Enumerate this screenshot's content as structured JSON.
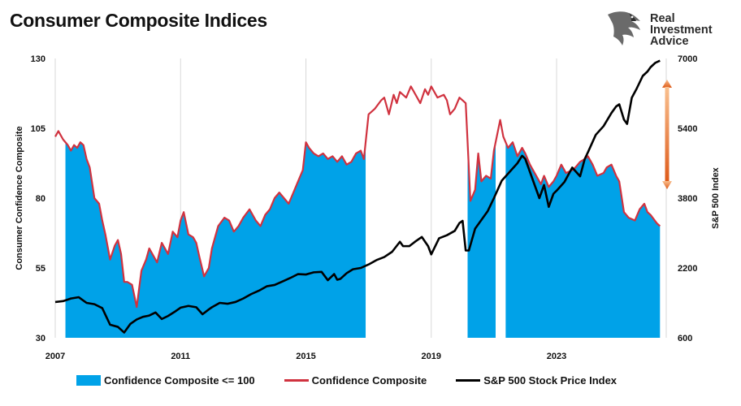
{
  "header": {
    "title": "Consumer Composite Indices"
  },
  "logo": {
    "line1": "Real",
    "line2": "Investment",
    "line3": "Advice"
  },
  "chart_data": {
    "type": "line",
    "title": "Consumer Composite Indices",
    "x_range": [
      2007.0,
      2026.5
    ],
    "x_ticks": [
      "2007",
      "2011",
      "2015",
      "2019",
      "2023"
    ],
    "y_left": {
      "label": "Consumer Confidence Composite",
      "range": [
        30,
        130
      ],
      "ticks": [
        "30",
        "55",
        "80",
        "105",
        "130"
      ]
    },
    "y_right": {
      "label": "S&P 500 Index",
      "range": [
        600,
        7000
      ],
      "ticks": [
        "600",
        "2200",
        "3800",
        "5400",
        "7000"
      ]
    },
    "grid": "vertical",
    "legend_position": "bottom",
    "colors": {
      "area": "#00a2e8",
      "confidence": "#d0323f",
      "sp500": "#000000",
      "arrow_top": "#f9c08f",
      "arrow_bottom": "#de5a19"
    },
    "series": [
      {
        "name": "Confidence Composite <= 100",
        "axis": "left",
        "style": "area",
        "threshold": 100
      },
      {
        "name": "Confidence Composite",
        "axis": "left",
        "style": "line",
        "points": [
          [
            2007.0,
            102
          ],
          [
            2007.1,
            104
          ],
          [
            2007.25,
            101
          ],
          [
            2007.4,
            99
          ],
          [
            2007.5,
            97
          ],
          [
            2007.6,
            99
          ],
          [
            2007.7,
            98
          ],
          [
            2007.8,
            100
          ],
          [
            2007.9,
            99
          ],
          [
            2008.0,
            94
          ],
          [
            2008.1,
            91
          ],
          [
            2008.25,
            80
          ],
          [
            2008.4,
            78
          ],
          [
            2008.5,
            72
          ],
          [
            2008.6,
            67
          ],
          [
            2008.75,
            58
          ],
          [
            2008.9,
            63
          ],
          [
            2009.0,
            65
          ],
          [
            2009.1,
            60
          ],
          [
            2009.2,
            50
          ],
          [
            2009.3,
            50
          ],
          [
            2009.45,
            49
          ],
          [
            2009.6,
            41
          ],
          [
            2009.75,
            54
          ],
          [
            2009.9,
            58
          ],
          [
            2010.0,
            62
          ],
          [
            2010.1,
            60
          ],
          [
            2010.25,
            57
          ],
          [
            2010.4,
            64
          ],
          [
            2010.5,
            62
          ],
          [
            2010.6,
            60
          ],
          [
            2010.75,
            68
          ],
          [
            2010.9,
            66
          ],
          [
            2011.0,
            72
          ],
          [
            2011.1,
            75
          ],
          [
            2011.25,
            67
          ],
          [
            2011.4,
            66
          ],
          [
            2011.5,
            64
          ],
          [
            2011.6,
            59
          ],
          [
            2011.75,
            52
          ],
          [
            2011.9,
            55
          ],
          [
            2012.0,
            62
          ],
          [
            2012.2,
            70
          ],
          [
            2012.4,
            73
          ],
          [
            2012.55,
            72
          ],
          [
            2012.7,
            68
          ],
          [
            2012.85,
            70
          ],
          [
            2013.0,
            73
          ],
          [
            2013.2,
            76
          ],
          [
            2013.4,
            72
          ],
          [
            2013.55,
            70
          ],
          [
            2013.7,
            74
          ],
          [
            2013.85,
            76
          ],
          [
            2014.0,
            80
          ],
          [
            2014.15,
            82
          ],
          [
            2014.3,
            80
          ],
          [
            2014.45,
            78
          ],
          [
            2014.6,
            82
          ],
          [
            2014.75,
            86
          ],
          [
            2014.9,
            90
          ],
          [
            2015.0,
            100
          ],
          [
            2015.1,
            98
          ],
          [
            2015.25,
            96
          ],
          [
            2015.4,
            95
          ],
          [
            2015.55,
            96
          ],
          [
            2015.7,
            94
          ],
          [
            2015.85,
            95
          ],
          [
            2016.0,
            93
          ],
          [
            2016.15,
            95
          ],
          [
            2016.3,
            92
          ],
          [
            2016.45,
            93
          ],
          [
            2016.6,
            96
          ],
          [
            2016.75,
            97
          ],
          [
            2016.85,
            94
          ],
          [
            2017.0,
            110
          ],
          [
            2017.2,
            112
          ],
          [
            2017.4,
            115
          ],
          [
            2017.5,
            116
          ],
          [
            2017.65,
            110
          ],
          [
            2017.8,
            117
          ],
          [
            2017.9,
            114
          ],
          [
            2018.0,
            118
          ],
          [
            2018.2,
            116
          ],
          [
            2018.35,
            120
          ],
          [
            2018.5,
            117
          ],
          [
            2018.65,
            114
          ],
          [
            2018.8,
            119
          ],
          [
            2018.9,
            117
          ],
          [
            2019.0,
            120
          ],
          [
            2019.1,
            118
          ],
          [
            2019.2,
            116
          ],
          [
            2019.4,
            117
          ],
          [
            2019.5,
            115
          ],
          [
            2019.6,
            110
          ],
          [
            2019.75,
            112
          ],
          [
            2019.9,
            116
          ],
          [
            2020.0,
            115
          ],
          [
            2020.1,
            114
          ],
          [
            2020.25,
            79
          ],
          [
            2020.4,
            83
          ],
          [
            2020.5,
            96
          ],
          [
            2020.6,
            86
          ],
          [
            2020.75,
            88
          ],
          [
            2020.9,
            87
          ],
          [
            2021.0,
            97
          ],
          [
            2021.2,
            108
          ],
          [
            2021.3,
            102
          ],
          [
            2021.45,
            98
          ],
          [
            2021.6,
            100
          ],
          [
            2021.75,
            95
          ],
          [
            2021.9,
            98
          ],
          [
            2022.0,
            96
          ],
          [
            2022.15,
            92
          ],
          [
            2022.3,
            89
          ],
          [
            2022.5,
            85
          ],
          [
            2022.6,
            88
          ],
          [
            2022.75,
            84
          ],
          [
            2022.9,
            86
          ],
          [
            2023.0,
            88
          ],
          [
            2023.15,
            92
          ],
          [
            2023.3,
            89
          ],
          [
            2023.5,
            90
          ],
          [
            2023.6,
            91
          ],
          [
            2023.75,
            93
          ],
          [
            2023.9,
            94
          ],
          [
            2024.0,
            95
          ],
          [
            2024.15,
            92
          ],
          [
            2024.3,
            88
          ],
          [
            2024.5,
            89
          ],
          [
            2024.6,
            91
          ],
          [
            2024.75,
            92
          ],
          [
            2024.9,
            88
          ],
          [
            2025.0,
            86
          ],
          [
            2025.15,
            75
          ],
          [
            2025.3,
            73
          ],
          [
            2025.5,
            72
          ],
          [
            2025.65,
            76
          ],
          [
            2025.8,
            78
          ],
          [
            2025.9,
            75
          ],
          [
            2026.0,
            74
          ],
          [
            2026.2,
            71
          ],
          [
            2026.3,
            70
          ]
        ]
      },
      {
        "name": "S&P 500 Stock Price Index",
        "axis": "right",
        "style": "line",
        "points": [
          [
            2007.0,
            1420
          ],
          [
            2007.25,
            1440
          ],
          [
            2007.5,
            1500
          ],
          [
            2007.75,
            1530
          ],
          [
            2008.0,
            1400
          ],
          [
            2008.25,
            1370
          ],
          [
            2008.5,
            1280
          ],
          [
            2008.75,
            900
          ],
          [
            2009.0,
            850
          ],
          [
            2009.2,
            720
          ],
          [
            2009.4,
            920
          ],
          [
            2009.6,
            1020
          ],
          [
            2009.8,
            1080
          ],
          [
            2010.0,
            1110
          ],
          [
            2010.2,
            1180
          ],
          [
            2010.4,
            1030
          ],
          [
            2010.6,
            1100
          ],
          [
            2010.8,
            1190
          ],
          [
            2011.0,
            1290
          ],
          [
            2011.25,
            1330
          ],
          [
            2011.5,
            1300
          ],
          [
            2011.7,
            1140
          ],
          [
            2011.9,
            1250
          ],
          [
            2012.0,
            1300
          ],
          [
            2012.25,
            1400
          ],
          [
            2012.5,
            1380
          ],
          [
            2012.75,
            1420
          ],
          [
            2013.0,
            1500
          ],
          [
            2013.25,
            1600
          ],
          [
            2013.5,
            1680
          ],
          [
            2013.75,
            1780
          ],
          [
            2014.0,
            1810
          ],
          [
            2014.25,
            1890
          ],
          [
            2014.5,
            1970
          ],
          [
            2014.75,
            2060
          ],
          [
            2015.0,
            2050
          ],
          [
            2015.25,
            2100
          ],
          [
            2015.5,
            2110
          ],
          [
            2015.7,
            1920
          ],
          [
            2015.9,
            2060
          ],
          [
            2016.0,
            1930
          ],
          [
            2016.1,
            1950
          ],
          [
            2016.3,
            2080
          ],
          [
            2016.5,
            2170
          ],
          [
            2016.75,
            2200
          ],
          [
            2017.0,
            2280
          ],
          [
            2017.25,
            2380
          ],
          [
            2017.5,
            2450
          ],
          [
            2017.75,
            2570
          ],
          [
            2018.0,
            2800
          ],
          [
            2018.1,
            2700
          ],
          [
            2018.3,
            2700
          ],
          [
            2018.5,
            2810
          ],
          [
            2018.7,
            2910
          ],
          [
            2018.9,
            2700
          ],
          [
            2019.0,
            2510
          ],
          [
            2019.25,
            2880
          ],
          [
            2019.5,
            2950
          ],
          [
            2019.75,
            3050
          ],
          [
            2019.9,
            3230
          ],
          [
            2020.0,
            3280
          ],
          [
            2020.1,
            2600
          ],
          [
            2020.2,
            2600
          ],
          [
            2020.4,
            3100
          ],
          [
            2020.6,
            3300
          ],
          [
            2020.8,
            3500
          ],
          [
            2021.0,
            3800
          ],
          [
            2021.25,
            4200
          ],
          [
            2021.5,
            4400
          ],
          [
            2021.75,
            4600
          ],
          [
            2021.9,
            4770
          ],
          [
            2022.0,
            4700
          ],
          [
            2022.2,
            4300
          ],
          [
            2022.45,
            3800
          ],
          [
            2022.6,
            4100
          ],
          [
            2022.75,
            3600
          ],
          [
            2022.9,
            3900
          ],
          [
            2023.0,
            3970
          ],
          [
            2023.25,
            4170
          ],
          [
            2023.5,
            4500
          ],
          [
            2023.75,
            4300
          ],
          [
            2023.9,
            4700
          ],
          [
            2024.0,
            4850
          ],
          [
            2024.25,
            5250
          ],
          [
            2024.5,
            5450
          ],
          [
            2024.75,
            5750
          ],
          [
            2024.9,
            5900
          ],
          [
            2025.0,
            5950
          ],
          [
            2025.15,
            5600
          ],
          [
            2025.25,
            5500
          ],
          [
            2025.4,
            6100
          ],
          [
            2025.55,
            6300
          ],
          [
            2025.75,
            6600
          ],
          [
            2025.9,
            6700
          ],
          [
            2026.0,
            6800
          ],
          [
            2026.15,
            6900
          ],
          [
            2026.3,
            6950
          ]
        ]
      }
    ],
    "legend": [
      "Confidence Composite <= 100",
      "Confidence Composite",
      "S&P 500 Stock Price Index"
    ]
  }
}
